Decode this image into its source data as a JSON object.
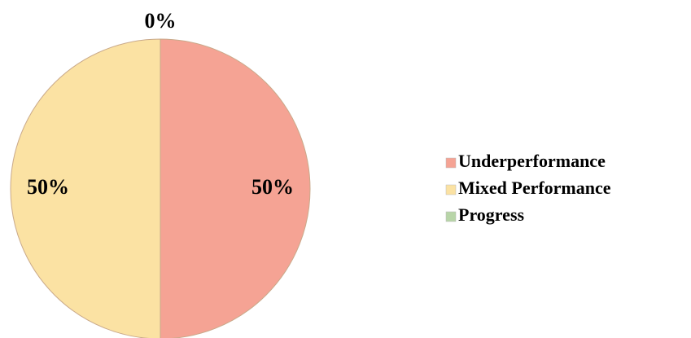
{
  "chart_data": {
    "type": "pie",
    "categories": [
      "Underperformance",
      "Mixed Performance",
      "Progress"
    ],
    "values": [
      50,
      50,
      0
    ],
    "value_labels": [
      "50%",
      "50%",
      "0%"
    ],
    "colors": [
      "#f5a394",
      "#fbe2a3",
      "#b8d5a8"
    ],
    "legend": "right"
  }
}
